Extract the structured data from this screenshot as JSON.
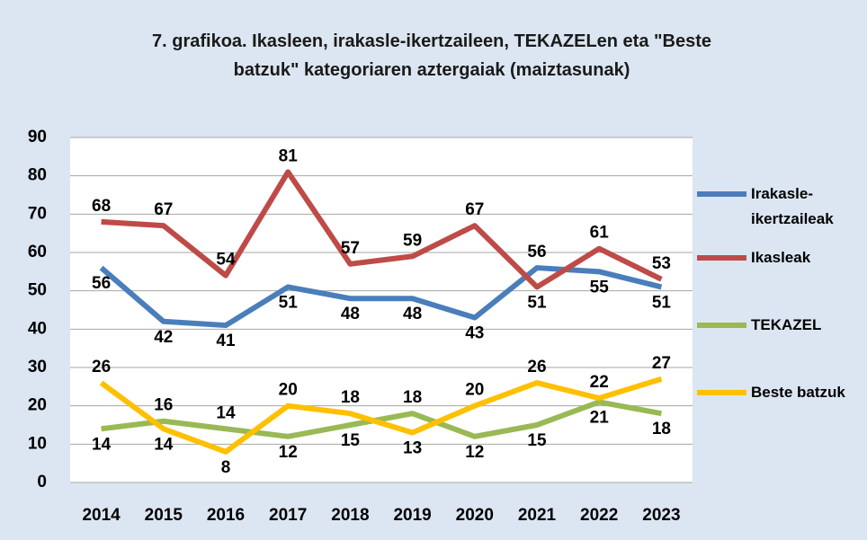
{
  "chart_data": {
    "type": "line",
    "title": "7. grafikoa. Ikasleen, irakasle-ikertzaileen, TEKAZELen eta \"Beste batzuk\" kategoriaren aztergaiak (maiztasunak)",
    "categories": [
      "2014",
      "2015",
      "2016",
      "2017",
      "2018",
      "2019",
      "2020",
      "2021",
      "2022",
      "2023"
    ],
    "series": [
      {
        "name": "Irakasle-ikertzaileak",
        "color": "#4a7ebb",
        "values": [
          56,
          42,
          41,
          51,
          48,
          48,
          43,
          56,
          55,
          51
        ]
      },
      {
        "name": "Ikasleak",
        "color": "#be4b48",
        "values": [
          68,
          67,
          54,
          81,
          57,
          59,
          67,
          51,
          61,
          53
        ]
      },
      {
        "name": "TEKAZEL",
        "color": "#98b954",
        "values": [
          14,
          16,
          14,
          12,
          15,
          18,
          12,
          15,
          21,
          18
        ]
      },
      {
        "name": "Beste batzuk",
        "color": "#ffc000",
        "values": [
          26,
          14,
          8,
          20,
          18,
          13,
          20,
          26,
          22,
          27
        ]
      }
    ],
    "ylim": [
      0,
      90
    ],
    "yticks": [
      0,
      10,
      20,
      30,
      40,
      50,
      60,
      70,
      80,
      90
    ],
    "grid": true,
    "legend": "right"
  }
}
